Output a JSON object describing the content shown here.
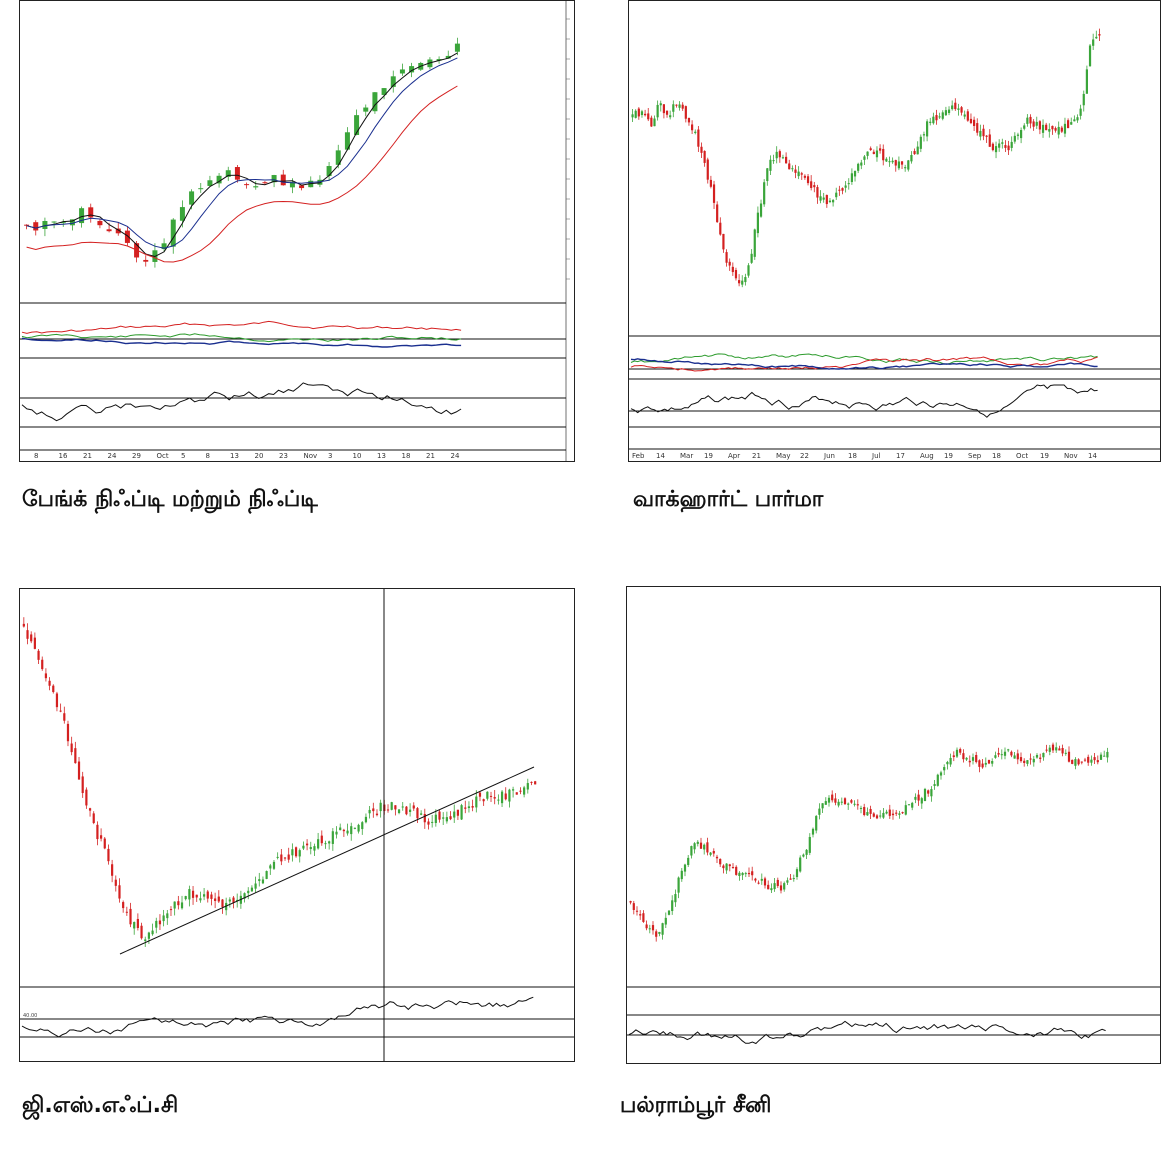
{
  "colors": {
    "up": "#3aa53a",
    "down": "#d42020",
    "black": "#111111",
    "blue": "#1a2f8f",
    "green": "#2c9b2c",
    "red": "#d42020"
  },
  "captions": {
    "p1": "பேங்க் நிஃப்டி மற்றும் நிஃப்டி",
    "p2": "வாக்ஹார்ட் பார்மா",
    "p3": "ஜி.எஸ்.எஃப்.சி",
    "p4": "பல்ராம்பூர் சீனி"
  },
  "chart_data": [
    {
      "name": "bank-nifty",
      "type": "candlestick",
      "title": "பேங்க் நிஃப்டி மற்றும் நிஃப்டி",
      "x_tick_labels": [
        "8",
        "16",
        "21",
        "24",
        "29",
        "Oct",
        "5",
        "8",
        "13",
        "20",
        "23",
        "Nov",
        "3",
        "10",
        "13",
        "18",
        "21",
        "24"
      ],
      "closes": [
        46,
        45,
        45.5,
        47,
        46,
        48,
        49,
        48,
        46,
        44,
        42,
        40,
        37,
        35,
        38,
        42,
        46,
        50,
        54,
        57,
        59,
        60,
        60,
        58,
        56,
        57,
        58,
        59,
        58,
        57,
        56,
        58,
        59,
        62,
        68,
        72,
        77,
        80,
        83,
        85,
        86,
        88,
        90,
        92,
        93,
        91,
        94,
        96
      ],
      "ma_periods": [
        9,
        20,
        50
      ],
      "indicator_1": "Directional Movement",
      "indicator_2": "RSI",
      "dmi_levels": [
        20,
        40
      ],
      "rsi_levels": [
        40,
        60
      ]
    },
    {
      "name": "wockhardt",
      "type": "candlestick",
      "title": "வாக்ஹார்ட் பார்மா",
      "x_tick_labels": [
        "Feb",
        "14",
        "Mar",
        "19",
        "Apr",
        "21",
        "May",
        "22",
        "Jun",
        "18",
        "Jul",
        "17",
        "Aug",
        "19",
        "Sep",
        "18",
        "Oct",
        "19",
        "Nov",
        "14"
      ],
      "closes": [
        70,
        72,
        68,
        74,
        71,
        75,
        70,
        65,
        55,
        45,
        30,
        22,
        18,
        25,
        40,
        55,
        58,
        56,
        54,
        52,
        48,
        45,
        44,
        47,
        50,
        54,
        58,
        60,
        57,
        56,
        55,
        58,
        62,
        70,
        70,
        72,
        73,
        70,
        68,
        65,
        60,
        62,
        60,
        66,
        70,
        68,
        67,
        66,
        67,
        68,
        72,
        92,
        96
      ],
      "indicator_1": "Directional Movement",
      "indicator_2": "RSI"
    },
    {
      "name": "gsfc",
      "type": "candlestick",
      "title": "ஜி.எஸ்.எஃப்.சி",
      "closes": [
        95,
        88,
        80,
        72,
        60,
        48,
        38,
        30,
        20,
        12,
        8,
        10,
        15,
        18,
        20,
        19,
        18,
        17,
        18,
        20,
        24,
        28,
        30,
        32,
        33,
        34,
        36,
        38,
        40,
        42,
        44,
        45,
        44,
        42,
        40,
        41,
        42,
        44,
        46,
        48,
        47,
        48,
        50,
        52
      ],
      "trendline": true,
      "vertical_marker": true,
      "rsi_levels": [
        40,
        60
      ],
      "rsi_label": "40.00",
      "indicator": "RSI"
    },
    {
      "name": "balrampur",
      "type": "candlestick",
      "title": "பல்ராம்பூர் சீனி",
      "closes": [
        20,
        12,
        8,
        15,
        30,
        42,
        40,
        35,
        32,
        30,
        28,
        26,
        25,
        30,
        40,
        55,
        58,
        56,
        54,
        52,
        51,
        52,
        54,
        58,
        62,
        70,
        74,
        72,
        70,
        73,
        75,
        72,
        71,
        74,
        76,
        72,
        70,
        71,
        74
      ],
      "indicator": "RSI"
    }
  ]
}
